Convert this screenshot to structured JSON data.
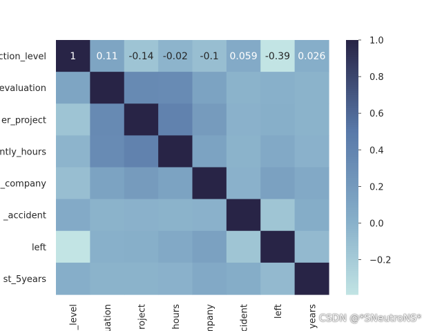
{
  "chart_data": {
    "type": "heatmap",
    "row_labels": [
      "ction_level",
      "evaluation",
      "er_project",
      "ntly_hours",
      "_company",
      "_accident",
      "left",
      "st_5years"
    ],
    "col_labels": [
      "_level",
      "uation",
      "roject",
      "hours",
      "mpany",
      "cident",
      "left",
      "years"
    ],
    "annotated_row": 0,
    "annotations": [
      "1",
      "0.11",
      "-0.14",
      "-0.02",
      "-0.1",
      "0.059",
      "-0.39",
      "0.026"
    ],
    "matrix": [
      [
        1,
        0.11,
        -0.14,
        -0.02,
        -0.1,
        0.059,
        -0.39,
        0.026
      ],
      [
        0.11,
        1,
        0.35,
        0.34,
        0.13,
        -0.01,
        0.01,
        -0.01
      ],
      [
        -0.14,
        0.35,
        1,
        0.42,
        0.2,
        0,
        0.02,
        -0.01
      ],
      [
        -0.02,
        0.34,
        0.42,
        1,
        0.13,
        -0.01,
        0.07,
        0
      ],
      [
        -0.1,
        0.13,
        0.2,
        0.13,
        1,
        0,
        0.14,
        0.07
      ],
      [
        0.059,
        -0.01,
        0,
        -0.01,
        0,
        1,
        -0.15,
        0.04
      ],
      [
        -0.39,
        0.01,
        0.02,
        0.07,
        0.14,
        -0.15,
        1,
        -0.06
      ],
      [
        0.026,
        -0.01,
        -0.01,
        0,
        0.07,
        0.04,
        -0.06,
        1
      ]
    ],
    "vmin": -0.39,
    "vmax": 1.0,
    "colorbar_ticks": [
      "1.0",
      "0.8",
      "0.6",
      "0.4",
      "0.2",
      "0.0",
      "−0.2"
    ],
    "colorbar_tick_values": [
      1.0,
      0.8,
      0.6,
      0.4,
      0.2,
      0.0,
      -0.2
    ],
    "colors": {
      "low": "#c2e4e4",
      "mid": "#86aec9",
      "high_mid": "#5878a8",
      "high": "#282446"
    }
  },
  "watermark": "CSDN @*SNeutroNS*"
}
